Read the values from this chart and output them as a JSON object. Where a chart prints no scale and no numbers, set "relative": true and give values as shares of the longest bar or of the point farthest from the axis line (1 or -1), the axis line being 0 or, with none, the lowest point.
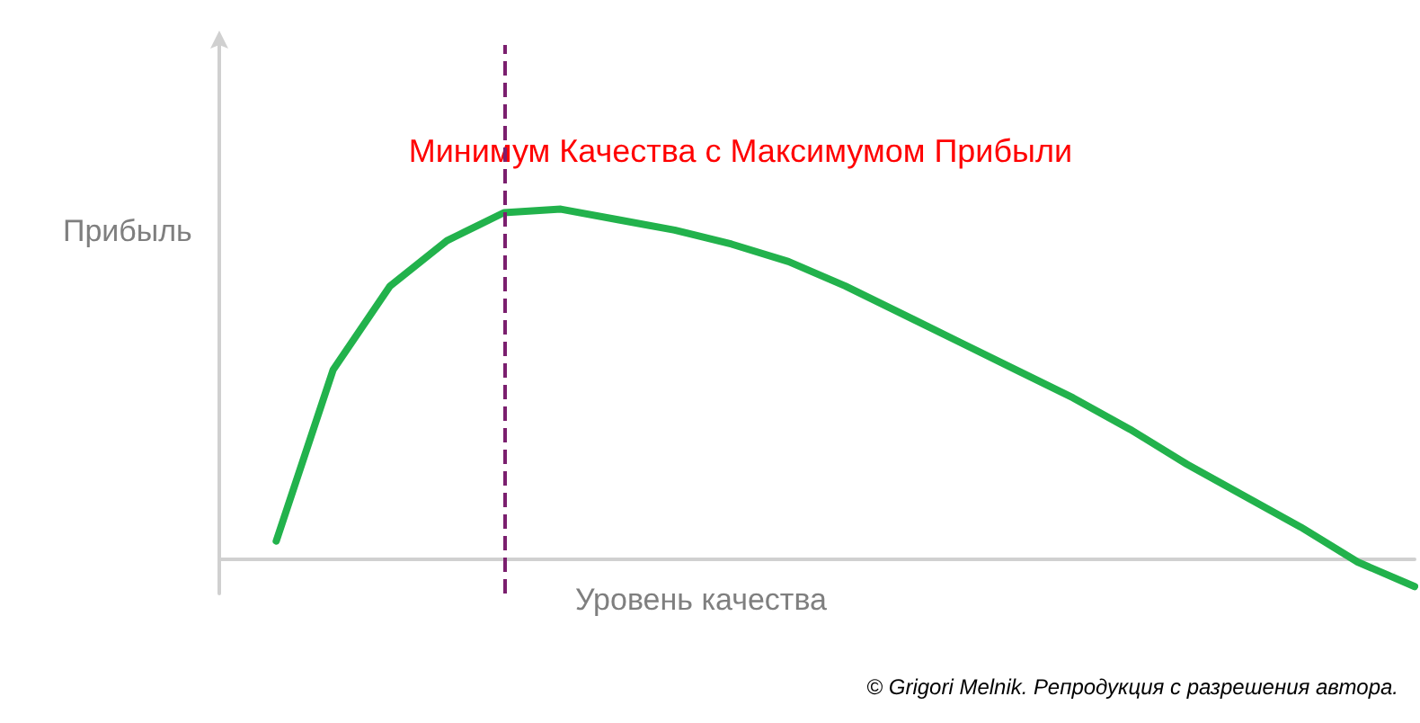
{
  "chart_data": {
    "type": "line",
    "relative": true,
    "xlabel": "Уровень качества",
    "ylabel": "Прибыль",
    "categories": [
      null,
      null,
      null,
      null,
      null,
      null,
      null,
      null,
      null,
      null,
      null,
      null,
      null,
      null,
      null,
      null,
      null,
      null,
      null,
      null,
      null
    ],
    "marker": "none",
    "line_style": "solid",
    "series": [
      {
        "color": "#22b24c",
        "values": [
          0.05,
          0.54,
          0.78,
          0.91,
          0.99,
          1,
          0.97,
          0.94,
          0.9,
          0.85,
          0.78,
          0.7,
          0.62,
          0.54,
          0.46,
          0.37,
          0.27,
          0.18,
          0.09,
          -0.01,
          -0.08
        ]
      }
    ],
    "annotations": [
      "Минимум Качества с Максимумом Прибыли",
      "© Grigori Melnik. Репродукция с разрешения автора."
    ]
  }
}
